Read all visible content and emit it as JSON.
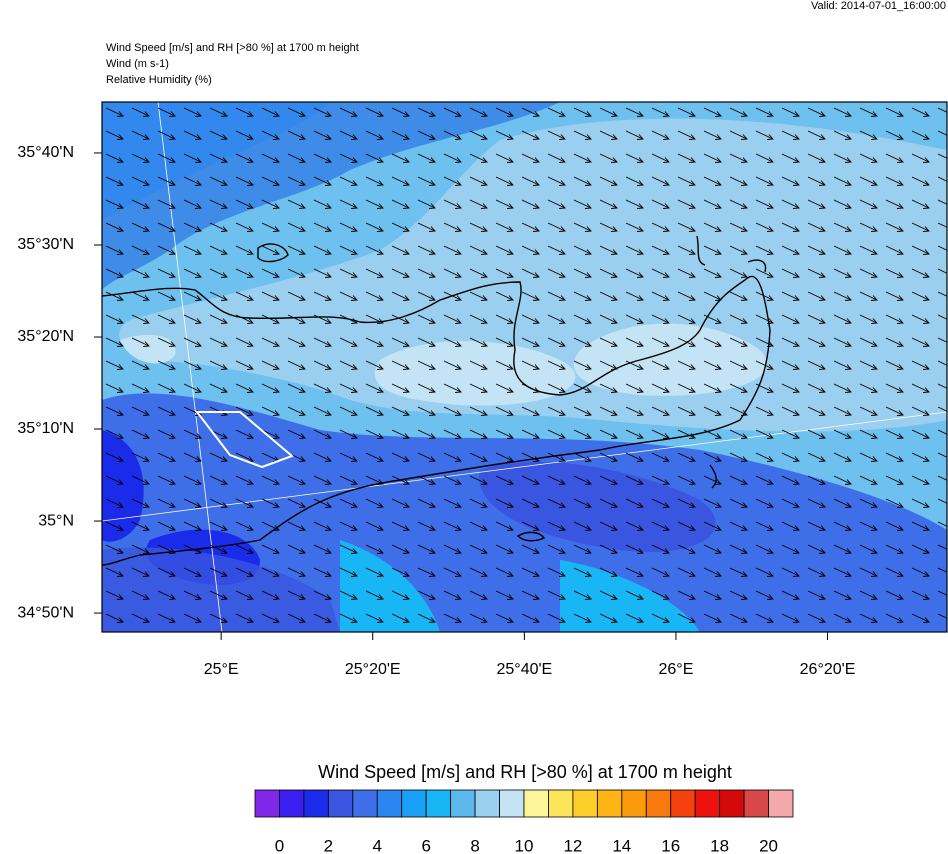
{
  "header": {
    "valid": "Valid: 2014-07-01_16:00:00",
    "titles": [
      "Wind Speed [m/s] and RH [>80 %] at 1700 m height",
      "Wind   (m s-1)",
      "Relative Humidity   (%)"
    ]
  },
  "map": {
    "xlim": [
      24.738,
      26.596
    ],
    "ylim": [
      34.799,
      35.759
    ],
    "xticks": [
      {
        "value": 25,
        "label": "25°E"
      },
      {
        "value": 25.3333,
        "label": "25°20'E"
      },
      {
        "value": 25.6667,
        "label": "25°40'E"
      },
      {
        "value": 26,
        "label": "26°E"
      },
      {
        "value": 26.3333,
        "label": "26°20'E"
      }
    ],
    "yticks": [
      {
        "value": 35.6667,
        "label": "35°40'N"
      },
      {
        "value": 35.5,
        "label": "35°30'N"
      },
      {
        "value": 35.3333,
        "label": "35°20'N"
      },
      {
        "value": 35.1667,
        "label": "35°10'N"
      },
      {
        "value": 35,
        "label": "35°N"
      },
      {
        "value": 34.8333,
        "label": "34°50'N"
      }
    ]
  },
  "colorbar": {
    "title": "Wind Speed [m/s] and RH [>80 %] at 1700 m height",
    "range": [
      -1,
      21
    ],
    "colors": [
      "#7f28e8",
      "#3a1ff0",
      "#1a2bea",
      "#3a55e0",
      "#3f6fe8",
      "#2a86f0",
      "#1aa0f5",
      "#19b6f5",
      "#5ab8ec",
      "#9bcff0",
      "#c4e4f5",
      "#fdf59a",
      "#fde55a",
      "#fdcd2a",
      "#fdb414",
      "#fb9a0c",
      "#f97a0c",
      "#f5420c",
      "#ee120e",
      "#d40a0a",
      "#d84848",
      "#f4a8a8"
    ],
    "ticks": [
      0,
      2,
      4,
      6,
      8,
      10,
      12,
      14,
      16,
      18,
      20
    ]
  }
}
